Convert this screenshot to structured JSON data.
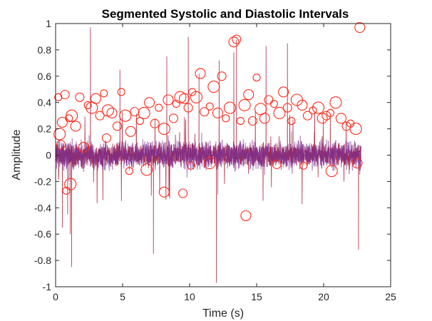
{
  "chart_data": {
    "type": "line",
    "title": "Segmented Systolic and Diastolic Intervals",
    "xlabel": "Time (s)",
    "ylabel": "Amplitude",
    "xlim": [
      0,
      25
    ],
    "ylim": [
      -1,
      1
    ],
    "x_ticks": [
      0,
      5,
      10,
      15,
      20,
      25
    ],
    "x_tick_labels": [
      "0",
      "5",
      "10",
      "15",
      "20",
      "25"
    ],
    "y_ticks": [
      -1,
      -0.8,
      -0.6,
      -0.4,
      -0.2,
      0,
      0.2,
      0.4,
      0.6,
      0.8,
      1
    ],
    "y_tick_labels": [
      "-1",
      "-0.8",
      "-0.6",
      "-0.4",
      "-0.2",
      "0",
      "0.2",
      "0.4",
      "0.6",
      "0.8",
      "1"
    ],
    "grid": false,
    "legend": "none",
    "series": [
      {
        "style": "line",
        "color": "#a2142f",
        "description": "raw signal",
        "x": [
          0.5,
          0.9,
          1.1,
          1.2,
          2.6,
          4.8,
          7.3,
          8.3,
          9.9,
          10.7,
          12.0,
          12.2,
          13.3,
          13.5,
          15.7,
          17.3,
          22.6
        ],
        "y": [
          -0.55,
          -0.45,
          -0.6,
          -0.85,
          0.97,
          0.65,
          -0.75,
          0.75,
          0.9,
          0.62,
          -0.97,
          0.72,
          0.78,
          0.88,
          0.83,
          0.85,
          -0.72
        ]
      },
      {
        "style": "line",
        "color": "#7e2f8e",
        "description": "segmented signal",
        "x": [
          0.2,
          1.0,
          2.5,
          4.0,
          6.5,
          8.4,
          9.8,
          10.9,
          12.1,
          14.0,
          15.6,
          17.6,
          19.8,
          22.7
        ],
        "y": [
          0.12,
          -0.2,
          0.15,
          -0.12,
          0.12,
          0.15,
          -0.17,
          0.17,
          -0.3,
          0.12,
          -0.15,
          0.18,
          0.12,
          -0.15
        ]
      },
      {
        "style": "marker-circle",
        "color": "#ff2a1a",
        "description": "detected peaks",
        "x": [
          0.2,
          0.3,
          0.5,
          0.7,
          1.0,
          1.2,
          1.5,
          1.8,
          2.4,
          2.7,
          3.0,
          3.3,
          3.6,
          3.9,
          4.2,
          4.6,
          4.9,
          5.2,
          5.6,
          5.9,
          6.3,
          6.6,
          7.0,
          7.4,
          7.7,
          8.1,
          8.4,
          8.8,
          9.0,
          9.3,
          9.6,
          9.9,
          10.2,
          10.5,
          10.8,
          11.1,
          11.5,
          11.8,
          12.1,
          12.4,
          12.7,
          13.0,
          13.3,
          13.5,
          13.8,
          14.1,
          14.4,
          14.7,
          15.0,
          15.3,
          15.6,
          15.9,
          16.3,
          16.7,
          17.0,
          17.3,
          17.6,
          18.0,
          18.4,
          18.8,
          19.2,
          19.6,
          19.9,
          20.2,
          20.5,
          20.9,
          21.3,
          21.7,
          22.0,
          22.4,
          22.7,
          0.4,
          0.8,
          1.1,
          2.1,
          3.8,
          5.5,
          6.8,
          8.1,
          9.5,
          10.1,
          11.5,
          14.2,
          16.5,
          18.5,
          20.6,
          22.5
        ],
        "y": [
          0.44,
          0.16,
          0.25,
          0.46,
          0.28,
          0.3,
          0.22,
          0.44,
          0.38,
          0.36,
          0.43,
          0.3,
          0.47,
          0.34,
          0.32,
          0.22,
          0.48,
          0.3,
          0.18,
          0.33,
          0.26,
          0.32,
          0.4,
          0.24,
          0.36,
          0.2,
          0.42,
          0.28,
          0.39,
          0.44,
          0.43,
          0.36,
          0.48,
          0.44,
          0.62,
          0.33,
          0.37,
          0.52,
          0.32,
          0.6,
          0.28,
          0.36,
          0.86,
          0.88,
          0.26,
          0.38,
          0.46,
          0.26,
          0.59,
          0.35,
          0.28,
          0.42,
          0.39,
          0.32,
          0.48,
          0.36,
          0.26,
          0.42,
          0.38,
          0.3,
          0.34,
          0.36,
          0.28,
          0.3,
          0.32,
          0.4,
          0.28,
          0.22,
          0.24,
          0.2,
          0.97,
          0.08,
          -0.27,
          -0.22,
          0.06,
          0.13,
          -0.12,
          -0.11,
          -0.28,
          -0.29,
          -0.08,
          -0.06,
          -0.46,
          -0.07,
          -0.08,
          -0.12,
          -0.06
        ]
      }
    ]
  }
}
